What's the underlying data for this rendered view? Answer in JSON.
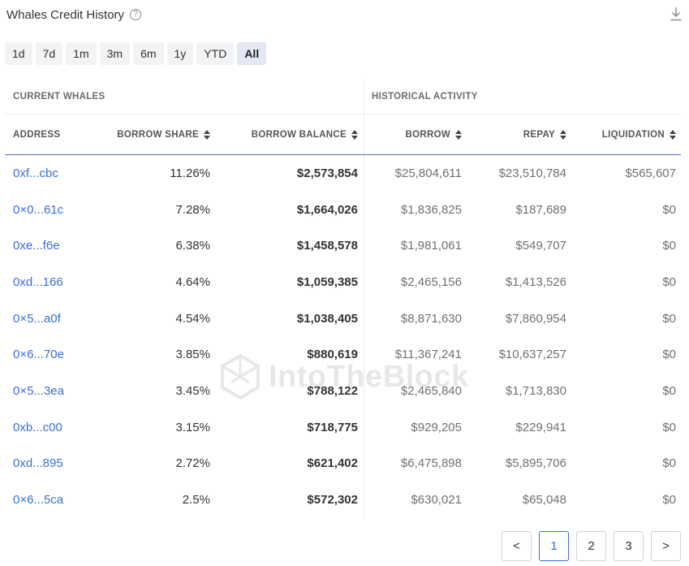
{
  "header": {
    "title": "Whales Credit History",
    "help_icon": "?"
  },
  "ranges": [
    "1d",
    "7d",
    "1m",
    "3m",
    "6m",
    "1y",
    "YTD",
    "All"
  ],
  "active_range": "All",
  "groups": {
    "current": "CURRENT WHALES",
    "historical": "HISTORICAL ACTIVITY"
  },
  "columns": [
    "ADDRESS",
    "BORROW SHARE",
    "BORROW BALANCE",
    "BORROW",
    "REPAY",
    "LIQUIDATION"
  ],
  "rows": [
    {
      "address": "0xf...cbc",
      "share": "11.26%",
      "balance": "$2,573,854",
      "borrow": "$25,804,611",
      "repay": "$23,510,784",
      "liquidation": "$565,607"
    },
    {
      "address": "0×0...61c",
      "share": "7.28%",
      "balance": "$1,664,026",
      "borrow": "$1,836,825",
      "repay": "$187,689",
      "liquidation": "$0"
    },
    {
      "address": "0xe...f6e",
      "share": "6.38%",
      "balance": "$1,458,578",
      "borrow": "$1,981,061",
      "repay": "$549,707",
      "liquidation": "$0"
    },
    {
      "address": "0xd...166",
      "share": "4.64%",
      "balance": "$1,059,385",
      "borrow": "$2,465,156",
      "repay": "$1,413,526",
      "liquidation": "$0"
    },
    {
      "address": "0×5...a0f",
      "share": "4.54%",
      "balance": "$1,038,405",
      "borrow": "$8,871,630",
      "repay": "$7,860,954",
      "liquidation": "$0"
    },
    {
      "address": "0×6...70e",
      "share": "3.85%",
      "balance": "$880,619",
      "borrow": "$11,367,241",
      "repay": "$10,637,257",
      "liquidation": "$0"
    },
    {
      "address": "0×5...3ea",
      "share": "3.45%",
      "balance": "$788,122",
      "borrow": "$2,465,840",
      "repay": "$1,713,830",
      "liquidation": "$0"
    },
    {
      "address": "0xb...c00",
      "share": "3.15%",
      "balance": "$718,775",
      "borrow": "$929,205",
      "repay": "$229,941",
      "liquidation": "$0"
    },
    {
      "address": "0xd...895",
      "share": "2.72%",
      "balance": "$621,402",
      "borrow": "$6,475,898",
      "repay": "$5,895,706",
      "liquidation": "$0"
    },
    {
      "address": "0×6...5ca",
      "share": "2.5%",
      "balance": "$572,302",
      "borrow": "$630,021",
      "repay": "$65,048",
      "liquidation": "$0"
    }
  ],
  "watermark": "IntoTheBlock",
  "pagination": {
    "prev": "<",
    "pages": [
      "1",
      "2",
      "3"
    ],
    "active_page": "1",
    "next": ">"
  },
  "colors": {
    "link": "#3a6fd8",
    "accent_line": "#5470c6",
    "active_range_bg": "#e3e8f4"
  }
}
